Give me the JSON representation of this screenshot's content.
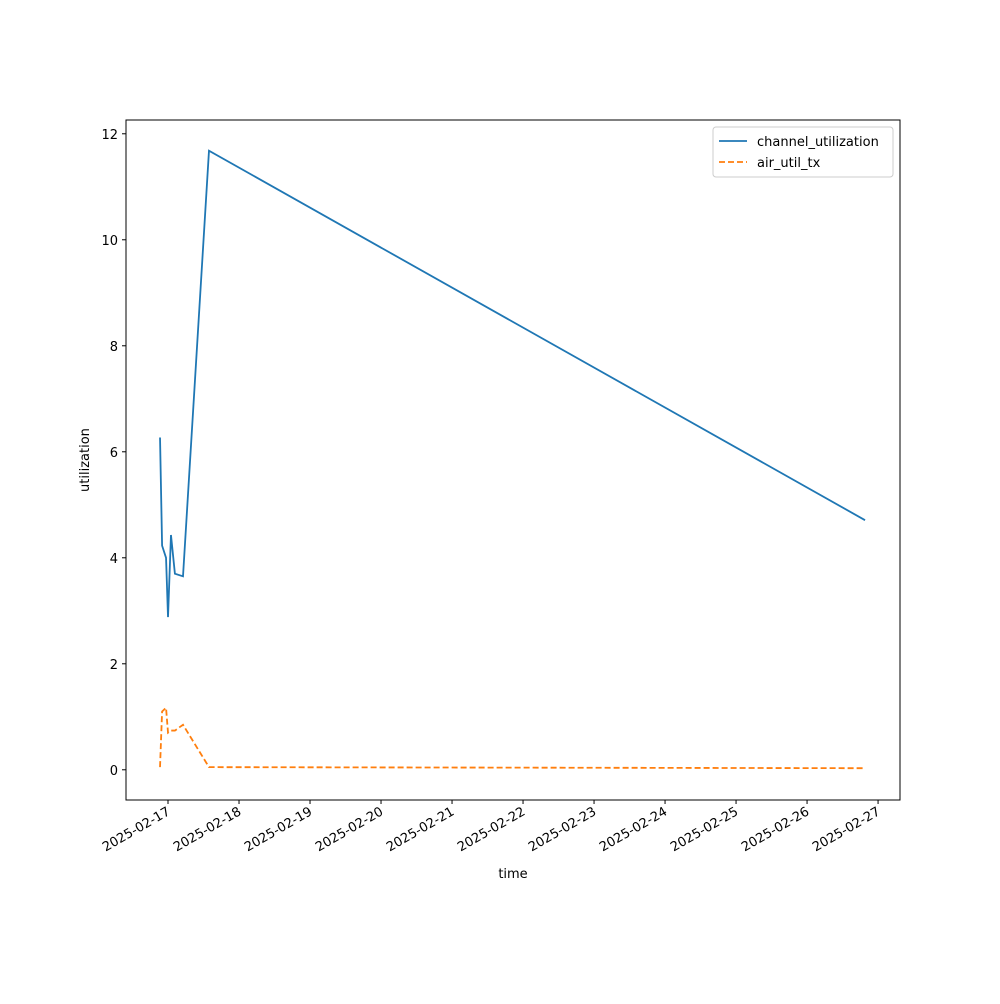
{
  "chart_data": {
    "type": "line",
    "xlabel": "time",
    "ylabel": "utilization",
    "x": [
      "2025-02-16T21:18",
      "2025-02-16T22:00",
      "2025-02-16T23:20",
      "2025-02-17T00:00",
      "2025-02-17T01:00",
      "2025-02-17T02:20",
      "2025-02-17T05:04",
      "2025-02-17T13:51",
      "2025-02-26T19:36"
    ],
    "series": [
      {
        "name": "channel_utilization",
        "color": "#1f77b4",
        "dash": "solid",
        "values": [
          6.27,
          4.23,
          4.0,
          2.88,
          4.43,
          3.7,
          3.65,
          11.68,
          4.71
        ]
      },
      {
        "name": "air_util_tx",
        "color": "#ff7f0e",
        "dash": "dashed",
        "values": [
          0.05,
          1.1,
          1.17,
          0.7,
          0.74,
          0.74,
          0.85,
          0.05,
          0.03
        ]
      }
    ],
    "xlim": [
      "2025-02-16T09:48",
      "2025-02-27T07:25"
    ],
    "xticks": [
      "2025-02-17",
      "2025-02-18",
      "2025-02-19",
      "2025-02-20",
      "2025-02-21",
      "2025-02-22",
      "2025-02-23",
      "2025-02-24",
      "2025-02-25",
      "2025-02-26",
      "2025-02-27"
    ],
    "ylim": [
      -0.57,
      12.26
    ],
    "yticks": [
      0,
      2,
      4,
      6,
      8,
      10,
      12
    ],
    "grid": false,
    "legend": "upper-right"
  }
}
